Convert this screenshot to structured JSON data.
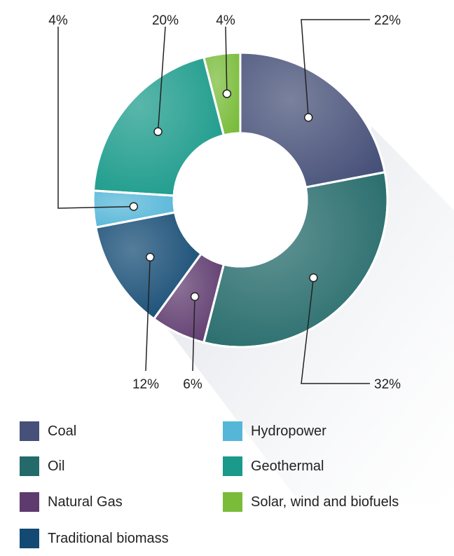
{
  "chart_data": {
    "type": "pie",
    "style": "donut",
    "slices": [
      {
        "label": "Coal",
        "value": 22,
        "value_label": "22%",
        "color": "#465078"
      },
      {
        "label": "Oil",
        "value": 32,
        "value_label": "32%",
        "color": "#256a6a"
      },
      {
        "label": "Natural Gas",
        "value": 6,
        "value_label": "6%",
        "color": "#5e3a6e"
      },
      {
        "label": "Traditional biomass",
        "value": 12,
        "value_label": "12%",
        "color": "#134a73"
      },
      {
        "label": "Hydropower",
        "value": 4,
        "value_label": "4%",
        "color": "#55b6d8"
      },
      {
        "label": "Geothermal",
        "value": 20,
        "value_label": "20%",
        "color": "#199a8a"
      },
      {
        "label": "Solar, wind and biofuels",
        "value": 4,
        "value_label": "4%",
        "color": "#79bc3a"
      }
    ],
    "legend_position": "bottom",
    "title": ""
  },
  "legend": {
    "items": [
      {
        "label": "Coal",
        "color": "#465078"
      },
      {
        "label": "Oil",
        "color": "#256a6a"
      },
      {
        "label": "Natural Gas",
        "color": "#5e3a6e"
      },
      {
        "label": "Traditional biomass",
        "color": "#134a73"
      },
      {
        "label": "Hydropower",
        "color": "#55b6d8"
      },
      {
        "label": "Geothermal",
        "color": "#199a8a"
      },
      {
        "label": "Solar, wind and biofuels",
        "color": "#79bc3a"
      }
    ]
  }
}
